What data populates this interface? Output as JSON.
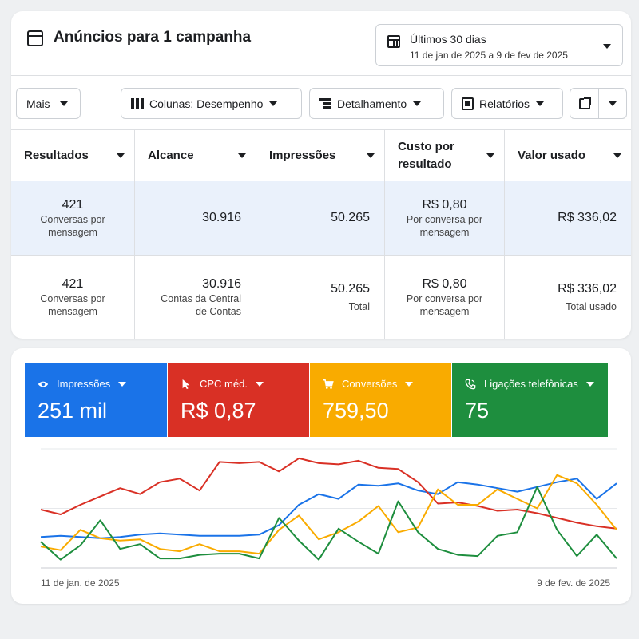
{
  "header": {
    "title": "Anúncios para 1 campanha",
    "date_range_label": "Últimos 30 dias",
    "date_range_value": "11 de jan de 2025 a 9 de fev de 2025"
  },
  "toolbar": {
    "more_label": "Mais",
    "columns_label": "Colunas: Desempenho",
    "breakdown_label": "Detalhamento",
    "reports_label": "Relatórios"
  },
  "table": {
    "columns": [
      "Resultados",
      "Alcance",
      "Impressões",
      "Custo por resultado",
      "Valor usado"
    ],
    "rows": [
      {
        "results": "421",
        "results_sub": "Conversas por mensagem",
        "reach": "30.916",
        "reach_sub": "",
        "impressions": "50.265",
        "impressions_sub": "",
        "cost": "R$ 0,80",
        "cost_sub": "Por conversa por mensagem",
        "spent": "R$ 336,02",
        "spent_sub": ""
      },
      {
        "results": "421",
        "results_sub": "Conversas por mensagem",
        "reach": "30.916",
        "reach_sub": "Contas da Central de Contas",
        "impressions": "50.265",
        "impressions_sub": "Total",
        "cost": "R$ 0,80",
        "cost_sub": "Por conversa por mensagem",
        "spent": "R$ 336,02",
        "spent_sub": "Total usado"
      }
    ]
  },
  "kpis": [
    {
      "label": "Impressões",
      "value": "251 mil",
      "color": "#1a73e8",
      "icon": "eye-icon"
    },
    {
      "label": "CPC méd.",
      "value": "R$ 0,87",
      "color": "#d93025",
      "icon": "cursor-icon"
    },
    {
      "label": "Conversões",
      "value": "759,50",
      "color": "#f9ab00",
      "icon": "cart-icon"
    },
    {
      "label": "Ligações telefônicas",
      "value": "75",
      "color": "#1e8e3e",
      "icon": "phone-icon"
    }
  ],
  "chart": {
    "x_start_label": "11 de jan. de 2025",
    "x_end_label": "9 de fev. de 2025"
  },
  "chart_data": {
    "type": "line",
    "x": [
      "11 de jan. de 2025",
      "",
      "",
      "",
      "",
      "",
      "",
      "",
      "",
      "",
      "",
      "",
      "",
      "",
      "",
      "",
      "",
      "",
      "",
      "",
      "",
      "",
      "",
      "",
      "",
      "",
      "",
      "",
      "",
      "9 de fev. de 2025"
    ],
    "ylim": [
      0,
      100
    ],
    "grid": true,
    "series": [
      {
        "name": "Impressões",
        "color": "#1a73e8",
        "values": [
          26,
          27,
          26,
          25,
          26,
          28,
          29,
          28,
          27,
          27,
          27,
          28,
          36,
          53,
          62,
          58,
          70,
          69,
          71,
          65,
          62,
          72,
          70,
          67,
          64,
          68,
          72,
          75,
          58,
          71
        ]
      },
      {
        "name": "CPC méd.",
        "color": "#d93025",
        "values": [
          49,
          45,
          53,
          60,
          67,
          62,
          72,
          75,
          65,
          89,
          88,
          89,
          81,
          92,
          88,
          87,
          90,
          84,
          83,
          72,
          54,
          55,
          52,
          48,
          49,
          46,
          42,
          38,
          35,
          33
        ]
      },
      {
        "name": "Conversões",
        "color": "#f9ab00",
        "values": [
          18,
          15,
          32,
          25,
          23,
          24,
          16,
          14,
          20,
          14,
          14,
          12,
          32,
          44,
          24,
          30,
          39,
          52,
          30,
          34,
          66,
          53,
          53,
          66,
          58,
          50,
          78,
          71,
          53,
          32
        ]
      },
      {
        "name": "Ligações telefônicas",
        "color": "#1e8e3e",
        "values": [
          22,
          7,
          19,
          40,
          16,
          20,
          8,
          8,
          11,
          12,
          12,
          8,
          42,
          23,
          7,
          33,
          22,
          12,
          56,
          30,
          16,
          11,
          10,
          27,
          30,
          68,
          32,
          10,
          28,
          8
        ]
      }
    ]
  }
}
